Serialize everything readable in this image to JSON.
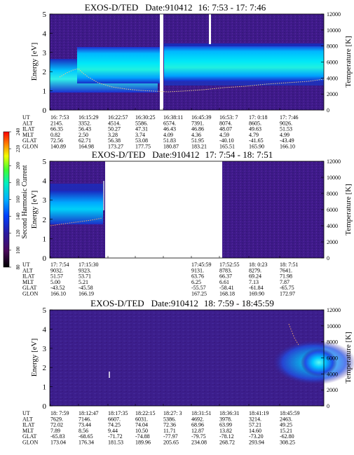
{
  "chart_data": [
    {
      "type": "heatmap",
      "title": "EXOS-D/TED",
      "date_label": "Date:910412",
      "time_range": "16: 7:53 - 17: 7:46",
      "ylabel": "Energy [eV]",
      "ylabel_right": "Temperature [K]",
      "ylim": [
        0,
        5
      ],
      "ylim_right": [
        0,
        12000
      ],
      "yticks": [
        "0",
        "1",
        "2",
        "3",
        "4",
        "5"
      ],
      "yticks_right": [
        "0",
        "2000",
        "4000",
        "6000",
        "8000",
        "10000",
        "12000"
      ],
      "orbit_rows": [
        "UT",
        "ALT",
        "ILAT",
        "MLT",
        "GLAT",
        "GLON"
      ],
      "orbit_table": [
        [
          "16: 7:53",
          "2145.",
          "66.35",
          "0.82",
          "72.56",
          "140.89"
        ],
        [
          "16:15:29",
          "3352.",
          "56.43",
          "2.50",
          "62.71",
          "164.98"
        ],
        [
          "16:22:57",
          "4514.",
          "50.27",
          "3.28",
          "56.38",
          "173.27"
        ],
        [
          "16:30:25",
          "5586.",
          "47.31",
          "3.74",
          "53.08",
          "177.75"
        ],
        [
          "16:38:11",
          "6574.",
          "46.43",
          "4.09",
          "51.83",
          "180.87"
        ],
        [
          "16:45:39",
          "7391.",
          "46.86",
          "4.36",
          "51.95",
          "183.21"
        ],
        [
          "16:53: 7",
          "8074.",
          "48.07",
          "4.59",
          "-40.10",
          "165.51"
        ],
        [
          "17: 0:18",
          "8605.",
          "49.63",
          "4.79",
          "-41.65",
          "165.90"
        ],
        [
          "17: 7:46",
          "9026.",
          "51.53",
          "4.99",
          "-43.49",
          "166.10"
        ]
      ],
      "band_color": "#00d0f8",
      "temperature_color": "#e8d090"
    },
    {
      "type": "heatmap",
      "title": "EXOS-D/TED",
      "date_label": "Date:910412",
      "time_range": "17: 7:54 - 18: 7:51",
      "ylabel": "Energy [eV]",
      "ylabel_right": "Temperature [K]",
      "ylim": [
        0,
        5
      ],
      "ylim_right": [
        0,
        12000
      ],
      "yticks": [
        "0",
        "1",
        "2",
        "3",
        "4",
        "5"
      ],
      "yticks_right": [
        "0",
        "2000",
        "4000",
        "6000",
        "8000",
        "10000",
        "12000"
      ],
      "colorbar_label": "Second Harmonic Current",
      "colorbar_ticks": [
        "80",
        "100",
        "120",
        "140",
        "160",
        "180",
        "200",
        "220",
        "240"
      ],
      "orbit_rows": [
        "UT",
        "ALT",
        "ILAT",
        "MLT",
        "GLAT",
        "GLON"
      ],
      "orbit_table": [
        [
          "17: 7:54",
          "9032.",
          "51.57",
          "5.00",
          "-43.52",
          "166.10"
        ],
        [
          "17:15:30",
          "9323.",
          "53.71",
          "5.21",
          "-45.58",
          "166.19"
        ],
        [
          "",
          "",
          "",
          "",
          "",
          ""
        ],
        [
          "",
          "",
          "",
          "",
          "",
          ""
        ],
        [
          "",
          "",
          "",
          "",
          "",
          ""
        ],
        [
          "17:45:59",
          "9131.",
          "63.76",
          "6.25",
          "-55.57",
          "167.25"
        ],
        [
          "17:52:55",
          "8783.",
          "66.37",
          "6.61",
          "-58.41",
          "168.18"
        ],
        [
          "18: 0:23",
          "8279.",
          "69.24",
          "7.13",
          "-61.84",
          "169.90"
        ],
        [
          "18: 7:51",
          "7641.",
          "71.98",
          "7.87",
          "-65.75",
          "172.97"
        ]
      ]
    },
    {
      "type": "heatmap",
      "title": "EXOS-D/TED",
      "date_label": "Date:910412",
      "time_range": "18: 7:59 - 18:45:59",
      "ylabel": "Energy [eV]",
      "ylabel_right": "Temperature [K]",
      "ylim": [
        0,
        5
      ],
      "ylim_right": [
        0,
        12000
      ],
      "yticks": [
        "0",
        "1",
        "2",
        "3",
        "4",
        "5"
      ],
      "yticks_right": [
        "0",
        "2000",
        "4000",
        "6000",
        "8000",
        "10000",
        "12000"
      ],
      "orbit_rows": [
        "UT",
        "ALT",
        "ILAT",
        "MLT",
        "GLAT",
        "GLON"
      ],
      "orbit_table": [
        [
          "18: 7:59",
          "7629.",
          "72.02",
          "7.89",
          "-65.83",
          "173.04"
        ],
        [
          "18:12:47",
          "7146.",
          "73.44",
          "8.56",
          "-68.65",
          "176.34"
        ],
        [
          "18:17:35",
          "6607.",
          "74.25",
          "9.44",
          "-71.72",
          "181.53"
        ],
        [
          "18:22:15",
          "6031.",
          "74.04",
          "10.50",
          "-74.88",
          "189.96"
        ],
        [
          "18:27: 3",
          "5386.",
          "72.36",
          "11.71",
          "-77.97",
          "205.65"
        ],
        [
          "18:31:51",
          "4692.",
          "68.96",
          "12.87",
          "-79.75",
          "234.08"
        ],
        [
          "18:36:31",
          "3978.",
          "63.99",
          "13.82",
          "-78.12",
          "268.72"
        ],
        [
          "18:41:19",
          "3214.",
          "57.21",
          "14.60",
          "-73.20",
          "293.94"
        ],
        [
          "18:45:59",
          "2463.",
          "49.25",
          "15.21",
          "-62.80",
          "308.25"
        ]
      ]
    }
  ]
}
